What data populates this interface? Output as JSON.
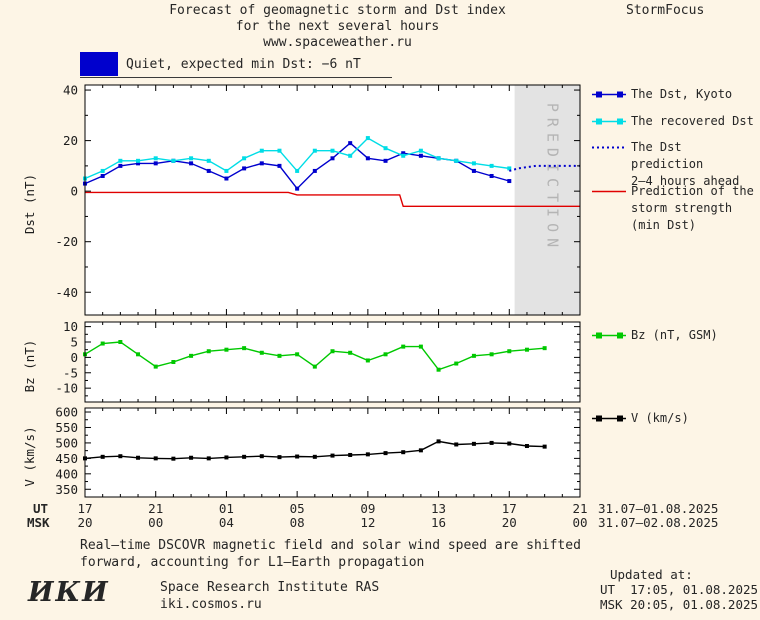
{
  "page": {
    "bg_color": "#fdf5e6",
    "text_color": "#262626"
  },
  "header": {
    "title_line1": "Forecast of geomagnetic storm and Dst index",
    "title_line2": "for the next several hours",
    "title_line3": "www.spaceweather.ru",
    "brand": "StormFocus"
  },
  "status_banner": {
    "swatch_color": "#0000cd",
    "text": "Quiet, expected min Dst: −6 nT"
  },
  "chart_data": [
    {
      "id": "dst",
      "type": "line",
      "ylabel": "Dst (nT)",
      "ylim": [
        -49,
        42
      ],
      "yticks": [
        40,
        20,
        0,
        -20,
        -40
      ],
      "x_description": "hours since 17:00 UT 31.07.2025",
      "prediction_band": {
        "x_start": 24.3,
        "x_end": 28,
        "label": "PREDICTION"
      },
      "series": [
        {
          "name": "The Dst, Kyoto",
          "color": "#0000cd",
          "marker": "square",
          "x0": 0,
          "dx": 1,
          "values": [
            3,
            6,
            10,
            11,
            11,
            12,
            11,
            8,
            5,
            9,
            11,
            10,
            1,
            8,
            13,
            19,
            13,
            12,
            15,
            14,
            13,
            12,
            8,
            6,
            4
          ]
        },
        {
          "name": "The recovered Dst",
          "color": "#00dde6",
          "marker": "square",
          "x0": 0,
          "dx": 1,
          "values": [
            5,
            8,
            12,
            12,
            13,
            12,
            13,
            12,
            8,
            13,
            16,
            16,
            8,
            16,
            16,
            14,
            21,
            17,
            14,
            16,
            13,
            12,
            11,
            10,
            9
          ]
        },
        {
          "name": "The Dst prediction 2–4 hours ahead",
          "color": "#0000cd",
          "dash": "2 3",
          "width": 2,
          "x0": 24,
          "dx": 0.5,
          "values": [
            8,
            9,
            9.5,
            10,
            10,
            10,
            10,
            10,
            10
          ]
        },
        {
          "name": "Prediction of the storm strength (min Dst)",
          "color": "#e00000",
          "width": 1.4,
          "points": [
            [
              0,
              -0.5
            ],
            [
              11.5,
              -0.5
            ],
            [
              12,
              -1.5
            ],
            [
              17.8,
              -1.5
            ],
            [
              18,
              -6
            ],
            [
              28,
              -6
            ]
          ]
        }
      ]
    },
    {
      "id": "bz",
      "type": "line",
      "ylabel": "Bz (nT)",
      "ylim": [
        -14.5,
        11.5
      ],
      "yticks": [
        10,
        5,
        0,
        -5,
        -10
      ],
      "series": [
        {
          "name": "Bz (nT, GSM)",
          "color": "#00c800",
          "marker": "square",
          "x0": 0,
          "dx": 1,
          "values": [
            1,
            4.5,
            5,
            1,
            -3,
            -1.5,
            0.5,
            2,
            2.5,
            3,
            1.5,
            0.5,
            1,
            -3,
            2,
            1.5,
            -1,
            1,
            3.5,
            3.5,
            -4,
            -2,
            0.5,
            1,
            2,
            2.5,
            3
          ]
        }
      ]
    },
    {
      "id": "v",
      "type": "line",
      "ylabel": "V (km/s)",
      "ylim": [
        325,
        613
      ],
      "yticks": [
        600,
        550,
        500,
        450,
        400,
        350
      ],
      "series": [
        {
          "name": "V (km/s)",
          "color": "#000000",
          "marker": "square",
          "x0": 0,
          "dx": 1,
          "values": [
            450,
            455,
            457,
            452,
            450,
            449,
            452,
            450,
            453,
            455,
            457,
            454,
            456,
            455,
            459,
            461,
            463,
            467,
            470,
            476,
            505,
            495,
            497,
            500,
            498,
            490,
            488
          ]
        }
      ]
    }
  ],
  "xaxis": {
    "xlim": [
      0,
      28
    ],
    "tick_positions": [
      0,
      4,
      8,
      12,
      16,
      20,
      24,
      28
    ],
    "ut_label": "UT",
    "msk_label": "MSK",
    "ut_ticks": [
      "17",
      "21",
      "01",
      "05",
      "09",
      "13",
      "17",
      "21"
    ],
    "msk_ticks": [
      "20",
      "00",
      "04",
      "08",
      "12",
      "16",
      "20",
      "00"
    ],
    "ut_date": "31.07–01.08.2025",
    "msk_date": "31.07–02.08.2025"
  },
  "legends": {
    "main": [
      {
        "lines": [
          "The Dst, Kyoto"
        ],
        "color": "#0000cd",
        "style": "line-squares"
      },
      {
        "lines": [
          "The recovered Dst"
        ],
        "color": "#00dde6",
        "style": "line-squares"
      },
      {
        "lines": [
          "The Dst prediction",
          "2–4 hours ahead"
        ],
        "color": "#0000cd",
        "style": "dotted"
      },
      {
        "lines": [
          "Prediction of the",
          "storm strength",
          "(min Dst)"
        ],
        "color": "#e00000",
        "style": "line"
      }
    ],
    "bz": [
      {
        "lines": [
          "Bz (nT, GSM)"
        ],
        "color": "#00c800",
        "style": "line-squares"
      }
    ],
    "v": [
      {
        "lines": [
          "V (km/s)"
        ],
        "color": "#000000",
        "style": "line-squares"
      }
    ]
  },
  "footnote": {
    "line1": "Real–time DSCOVR magnetic field and solar wind speed are shifted",
    "line2": "forward, accounting for L1–Earth propagation"
  },
  "footer": {
    "logo": "ИКИ",
    "institute": "Space Research Institute RAS",
    "site": "iki.cosmos.ru",
    "updated_label": "Updated at:",
    "updated_ut": "UT  17:05, 01.08.2025",
    "updated_msk": "MSK 20:05, 01.08.2025"
  }
}
